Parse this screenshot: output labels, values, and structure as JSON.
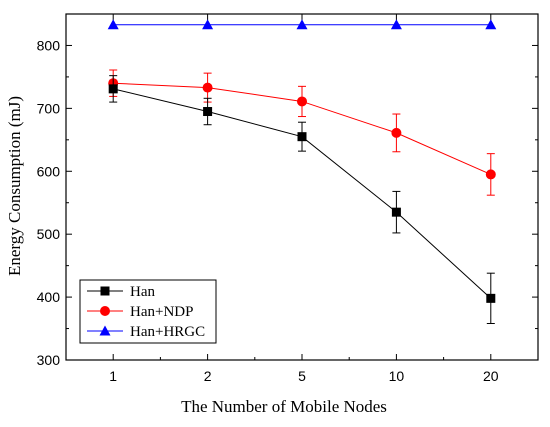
{
  "chart_data": {
    "type": "line",
    "title": "",
    "xlabel": "The Number of Mobile Nodes",
    "ylabel": "Energy Consumption (mJ)",
    "categories": [
      "1",
      "2",
      "5",
      "10",
      "20"
    ],
    "ylim": [
      300,
      850
    ],
    "yticks": [
      300,
      400,
      500,
      600,
      700,
      800
    ],
    "grid": false,
    "legend_position": "bottom-left",
    "series": [
      {
        "name": "Han",
        "color": "#000000",
        "marker": "square",
        "values": [
          731,
          695,
          655,
          535,
          398
        ],
        "error": [
          21,
          21,
          23,
          33,
          40
        ]
      },
      {
        "name": "Han+NDP",
        "color": "#ff0000",
        "marker": "circle",
        "values": [
          740,
          733,
          711,
          661,
          595
        ],
        "error": [
          21,
          23,
          24,
          30,
          33
        ]
      },
      {
        "name": "Han+HRGC",
        "color": "#0000ff",
        "marker": "triangle",
        "values": [
          833,
          833,
          833,
          833,
          833
        ],
        "error": [
          0,
          0,
          0,
          0,
          0
        ]
      }
    ]
  }
}
